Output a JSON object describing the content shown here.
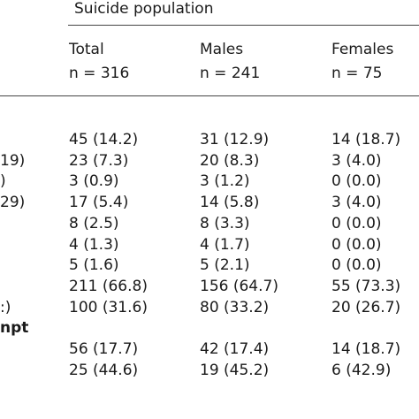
{
  "header": {
    "group_label": "Suicide population",
    "columns": [
      {
        "label": "Total",
        "n": "n = 316"
      },
      {
        "label": "Males",
        "n": "n = 241"
      },
      {
        "label": "Females",
        "n": "n = 75"
      }
    ]
  },
  "rows": [
    {
      "stub": "",
      "bold": false,
      "values": [
        "45 (14.2)",
        "31 (12.9)",
        "14 (18.7)"
      ]
    },
    {
      "stub": "19)",
      "bold": false,
      "values": [
        "23 (7.3)",
        "20 (8.3)",
        "3 (4.0)"
      ]
    },
    {
      "stub": ")",
      "bold": false,
      "values": [
        "3 (0.9)",
        "3 (1.2)",
        "0 (0.0)"
      ]
    },
    {
      "stub": "29)",
      "bold": false,
      "values": [
        "17 (5.4)",
        "14 (5.8)",
        "3 (4.0)"
      ]
    },
    {
      "stub": "",
      "bold": false,
      "values": [
        "8 (2.5)",
        "8 (3.3)",
        "0 (0.0)"
      ]
    },
    {
      "stub": "",
      "bold": false,
      "values": [
        "4 (1.3)",
        "4 (1.7)",
        "0 (0.0)"
      ]
    },
    {
      "stub": "",
      "bold": false,
      "values": [
        "5 (1.6)",
        "5 (2.1)",
        "0 (0.0)"
      ]
    },
    {
      "stub": "",
      "bold": false,
      "values": [
        "211 (66.8)",
        "156 (64.7)",
        "55 (73.3)"
      ]
    },
    {
      "stub": ":)",
      "bold": false,
      "values": [
        "100 (31.6)",
        "80 (33.2)",
        "20 (26.7)"
      ]
    },
    {
      "stub": "npt",
      "bold": true,
      "values": [
        "",
        "",
        ""
      ]
    },
    {
      "stub": "",
      "bold": false,
      "values": [
        "56 (17.7)",
        "42 (17.4)",
        "14 (18.7)"
      ]
    },
    {
      "stub": "",
      "bold": false,
      "values": [
        "25 (44.6)",
        "19 (45.2)",
        "6 (42.9)"
      ]
    }
  ]
}
